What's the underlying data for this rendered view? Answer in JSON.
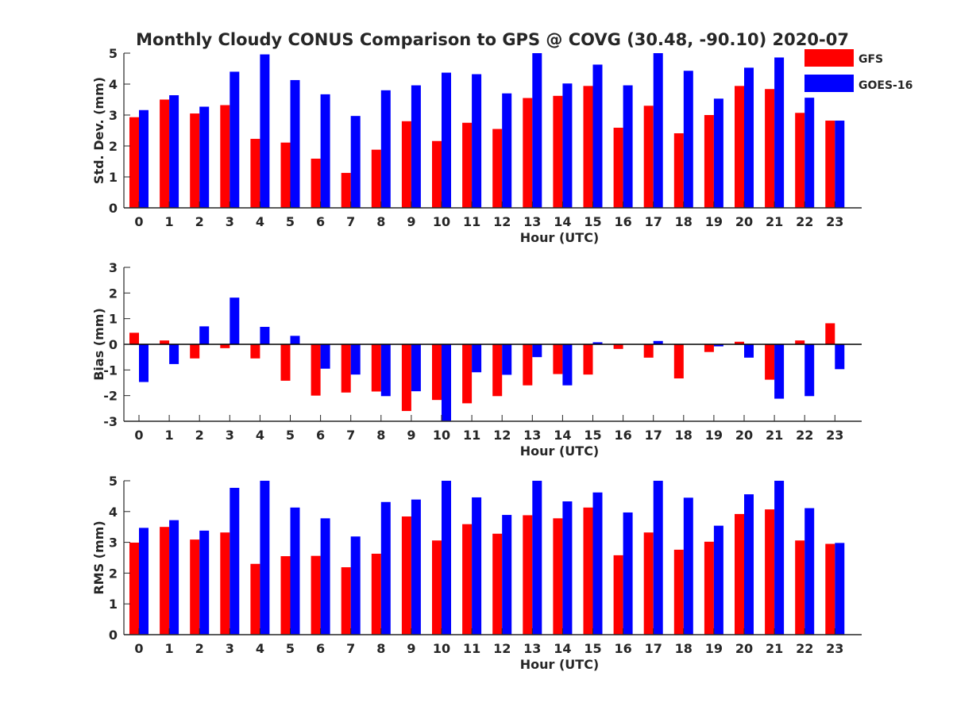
{
  "figure_title": "Monthly Cloudy CONUS Comparison to GPS @ COVG (30.48, -90.10) 2020-07",
  "legend": [
    {
      "name": "GFS",
      "color": "#ff0000"
    },
    {
      "name": "GOES-16",
      "color": "#0000ff"
    }
  ],
  "chart_data": [
    {
      "type": "bar",
      "title": "Monthly Cloudy CONUS Comparison to GPS @ COVG (30.48, -90.10) 2020-07",
      "xlabel": "Hour (UTC)",
      "ylabel": "Std. Dev. (mm)",
      "ylim": [
        0,
        5
      ],
      "yticks": [
        0,
        1,
        2,
        3,
        4,
        5
      ],
      "categories": [
        "0",
        "1",
        "2",
        "3",
        "4",
        "5",
        "6",
        "7",
        "8",
        "9",
        "10",
        "11",
        "12",
        "13",
        "14",
        "15",
        "16",
        "17",
        "18",
        "19",
        "20",
        "21",
        "22",
        "23"
      ],
      "grid": false,
      "legend_position": "outside-top-right",
      "series": [
        {
          "name": "GFS",
          "color": "#ff0000",
          "values": [
            2.93,
            3.5,
            3.05,
            3.32,
            2.23,
            2.11,
            1.59,
            1.13,
            1.88,
            2.8,
            2.16,
            2.75,
            2.55,
            3.55,
            3.62,
            3.94,
            2.59,
            3.3,
            2.41,
            3.0,
            3.94,
            3.84,
            3.07,
            2.82
          ]
        },
        {
          "name": "GOES-16",
          "color": "#0000ff",
          "values": [
            3.16,
            3.64,
            3.27,
            4.4,
            4.96,
            4.13,
            3.67,
            2.97,
            3.8,
            3.96,
            4.37,
            4.32,
            3.7,
            5.0,
            4.02,
            4.63,
            3.96,
            5.0,
            4.43,
            3.53,
            4.53,
            4.86,
            3.56,
            2.82
          ]
        }
      ]
    },
    {
      "type": "bar",
      "xlabel": "Hour (UTC)",
      "ylabel": "Bias (mm)",
      "ylim": [
        -3,
        3
      ],
      "yticks": [
        -3,
        -2,
        -1,
        0,
        1,
        2,
        3
      ],
      "categories": [
        "0",
        "1",
        "2",
        "3",
        "4",
        "5",
        "6",
        "7",
        "8",
        "9",
        "10",
        "11",
        "12",
        "13",
        "14",
        "15",
        "16",
        "17",
        "18",
        "19",
        "20",
        "21",
        "22",
        "23"
      ],
      "grid": false,
      "zero_line": true,
      "series": [
        {
          "name": "GFS",
          "color": "#ff0000",
          "values": [
            0.45,
            0.15,
            -0.55,
            -0.15,
            -0.55,
            -1.42,
            -2.0,
            -1.88,
            -1.84,
            -2.6,
            -2.17,
            -2.3,
            -2.02,
            -1.6,
            -1.16,
            -1.18,
            -0.18,
            -0.52,
            -1.33,
            -0.3,
            0.1,
            -1.38,
            0.15,
            0.82
          ]
        },
        {
          "name": "GOES-16",
          "color": "#0000ff",
          "values": [
            -1.47,
            -0.77,
            0.7,
            1.82,
            0.68,
            0.33,
            -0.95,
            -1.18,
            -2.02,
            -1.83,
            -3.0,
            -1.09,
            -1.19,
            -0.5,
            -1.6,
            0.08,
            0.0,
            0.13,
            0.0,
            -0.08,
            -0.52,
            -2.12,
            -2.02,
            -0.97
          ]
        }
      ]
    },
    {
      "type": "bar",
      "xlabel": "Hour (UTC)",
      "ylabel": "RMS (mm)",
      "ylim": [
        0,
        5
      ],
      "yticks": [
        0,
        1,
        2,
        3,
        4,
        5
      ],
      "categories": [
        "0",
        "1",
        "2",
        "3",
        "4",
        "5",
        "6",
        "7",
        "8",
        "9",
        "10",
        "11",
        "12",
        "13",
        "14",
        "15",
        "16",
        "17",
        "18",
        "19",
        "20",
        "21",
        "22",
        "23"
      ],
      "grid": false,
      "series": [
        {
          "name": "GFS",
          "color": "#ff0000",
          "values": [
            2.99,
            3.5,
            3.09,
            3.32,
            2.3,
            2.55,
            2.56,
            2.19,
            2.63,
            3.84,
            3.06,
            3.59,
            3.28,
            3.88,
            3.78,
            4.13,
            2.58,
            3.32,
            2.76,
            3.02,
            3.92,
            4.07,
            3.06,
            2.95
          ]
        },
        {
          "name": "GOES-16",
          "color": "#0000ff",
          "values": [
            3.47,
            3.72,
            3.38,
            4.77,
            5.0,
            4.13,
            3.78,
            3.19,
            4.31,
            4.39,
            5.0,
            4.46,
            3.89,
            5.0,
            4.33,
            4.62,
            3.97,
            5.0,
            4.45,
            3.54,
            4.56,
            5.0,
            4.11,
            2.98
          ]
        }
      ]
    }
  ]
}
